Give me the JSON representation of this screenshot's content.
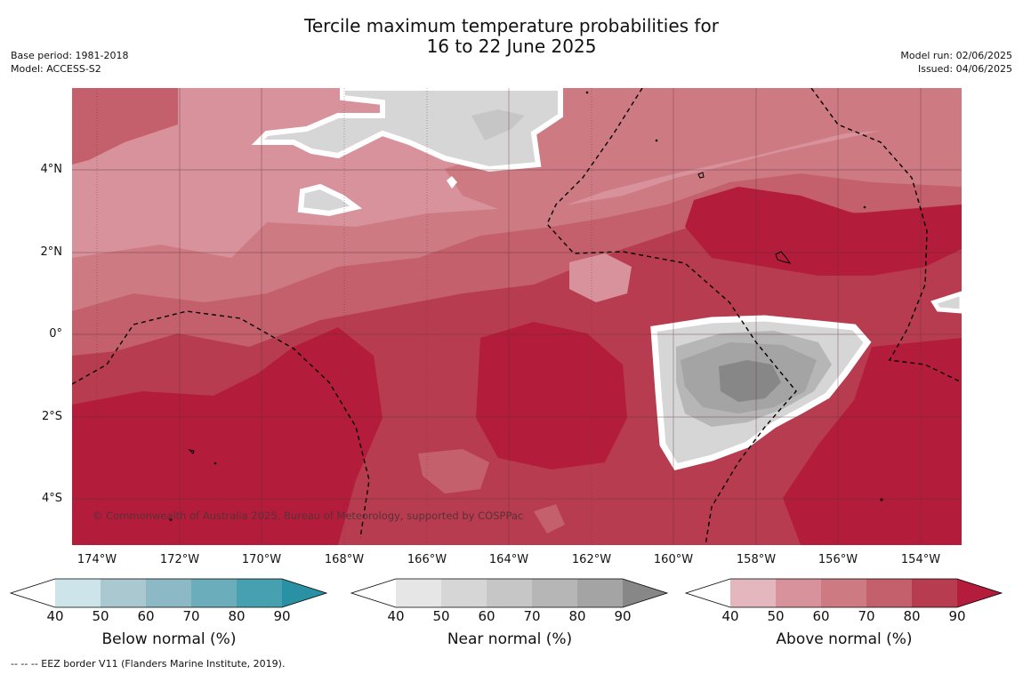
{
  "title": {
    "line1": "Tercile maximum temperature probabilities for",
    "line2": "16 to 22 June 2025"
  },
  "meta_left": {
    "base_period": "Base period: 1981-2018",
    "model": "Model: ACCESS-S2"
  },
  "meta_right": {
    "model_run": "Model run: 02/06/2025",
    "issued": "Issued: 04/06/2025"
  },
  "map": {
    "latitude_labels": [
      "4°N",
      "2°N",
      "0°",
      "2°S",
      "4°S"
    ],
    "longitude_labels": [
      "174°W",
      "172°W",
      "170°W",
      "168°W",
      "166°W",
      "164°W",
      "162°W",
      "160°W",
      "158°W",
      "156°W",
      "154°W"
    ],
    "copyright": "© Commonwealth of Australia 2025, Bureau of Meteorology, supported by COSPPac"
  },
  "colorbars": [
    {
      "label": "Below normal (%)",
      "ticks": [
        "40",
        "50",
        "60",
        "70",
        "80",
        "90"
      ],
      "colors": [
        "#ffffff",
        "#cde4ea",
        "#a9c8cf",
        "#8cb9c5",
        "#6cadbc",
        "#47a0b0",
        "#2a91a5"
      ]
    },
    {
      "label": "Near normal (%)",
      "ticks": [
        "40",
        "50",
        "60",
        "70",
        "80",
        "90"
      ],
      "colors": [
        "#ffffff",
        "#e6e6e6",
        "#d6d6d6",
        "#c6c6c6",
        "#b6b6b6",
        "#a4a4a4",
        "#878787"
      ]
    },
    {
      "label": "Above normal (%)",
      "ticks": [
        "40",
        "50",
        "60",
        "70",
        "80",
        "90"
      ],
      "colors": [
        "#ffffff",
        "#e4b6bd",
        "#d8929b",
        "#ce7a83",
        "#c4606c",
        "#b83c4f",
        "#b31c3a"
      ]
    }
  ],
  "footer": "--  --  -- EEZ border V11 (Flanders Marine Institute, 2019)."
}
